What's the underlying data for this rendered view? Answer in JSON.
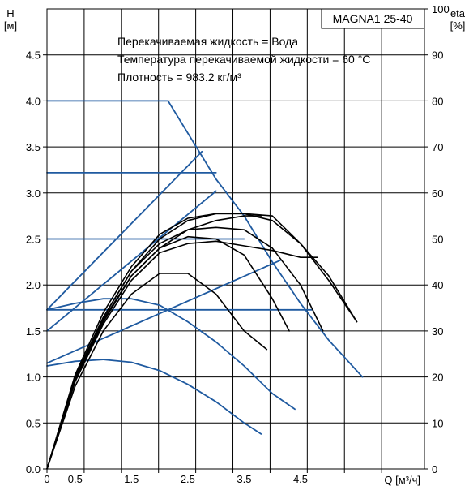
{
  "chart_data": {
    "type": "line",
    "title": "MAGNA1 25-40",
    "annotations": [
      "Перекачиваемая жидкость = Вода",
      "Температура перекачиваемой жидкости = 60 °C",
      "Плотность = 983.2 кг/м³"
    ],
    "left_axis": {
      "label_line1": "H",
      "label_line2": "[м]",
      "range": [
        0,
        5.0
      ],
      "ticks": [
        "0.0",
        "0.5",
        "1.0",
        "1.5",
        "2.0",
        "2.5",
        "3.0",
        "3.5",
        "4.0",
        "4.5"
      ]
    },
    "right_axis": {
      "label_line1": "eta",
      "label_line2": "[%]",
      "range": [
        0,
        100
      ],
      "ticks": [
        "0",
        "10",
        "20",
        "30",
        "40",
        "50",
        "60",
        "70",
        "80",
        "90",
        "100"
      ]
    },
    "x_axis": {
      "label": "Q [м³/ч]",
      "range": [
        0,
        6.7
      ],
      "tick_labels": [
        "0",
        "0.5",
        "1.5",
        "2.5",
        "3.5",
        "4.5"
      ],
      "gridlines": [
        0.66,
        1.32,
        1.98,
        2.64,
        3.3,
        3.96,
        4.62,
        5.28,
        5.94
      ]
    },
    "grid": true,
    "series": [
      {
        "group": "pump-curve",
        "color": "#1f5aa0",
        "axis": "H",
        "x": [
          0,
          2.15,
          2.6,
          3.0,
          3.5,
          4.0,
          4.5,
          5.0,
          5.6
        ],
        "y": [
          4.0,
          4.0,
          3.55,
          3.15,
          2.75,
          2.25,
          1.8,
          1.4,
          1.0
        ]
      },
      {
        "group": "const-head",
        "color": "#1f5aa0",
        "axis": "H",
        "x": [
          0,
          3.0
        ],
        "y": [
          3.22,
          3.22
        ]
      },
      {
        "group": "const-head",
        "color": "#1f5aa0",
        "axis": "H",
        "x": [
          0,
          3.5
        ],
        "y": [
          2.5,
          2.5
        ]
      },
      {
        "group": "const-head",
        "color": "#1f5aa0",
        "axis": "H",
        "x": [
          0,
          4.7
        ],
        "y": [
          1.73,
          1.73
        ]
      },
      {
        "group": "prop-pressure",
        "color": "#1f5aa0",
        "axis": "H",
        "x": [
          0,
          2.75
        ],
        "y": [
          1.73,
          3.45
        ]
      },
      {
        "group": "prop-pressure",
        "color": "#1f5aa0",
        "axis": "H",
        "x": [
          0,
          3.0
        ],
        "y": [
          1.5,
          3.02
        ]
      },
      {
        "group": "prop-pressure",
        "color": "#1f5aa0",
        "axis": "H",
        "x": [
          0,
          4.15
        ],
        "y": [
          1.15,
          2.27
        ]
      },
      {
        "group": "system-head",
        "color": "#1f5aa0",
        "axis": "H",
        "x": [
          0,
          0.5,
          1.0,
          1.5,
          2.0,
          2.5,
          3.0,
          3.5,
          4.0,
          4.4
        ],
        "y": [
          1.73,
          1.8,
          1.85,
          1.85,
          1.78,
          1.6,
          1.38,
          1.12,
          0.82,
          0.65
        ]
      },
      {
        "group": "system-head",
        "color": "#1f5aa0",
        "axis": "H",
        "x": [
          0,
          0.5,
          1.0,
          1.5,
          2.0,
          2.5,
          3.0,
          3.5,
          3.8
        ],
        "y": [
          1.12,
          1.17,
          1.19,
          1.16,
          1.07,
          0.92,
          0.73,
          0.5,
          0.38
        ]
      },
      {
        "group": "efficiency",
        "color": "#000000",
        "axis": "eta",
        "x": [
          0,
          0.5,
          1.0,
          1.5,
          2.0,
          2.5,
          3.0,
          3.5,
          4.0,
          4.5,
          5.0,
          5.5
        ],
        "y": [
          0,
          20,
          33,
          43,
          50,
          54,
          55.5,
          55.5,
          54,
          49,
          41,
          32
        ]
      },
      {
        "group": "efficiency",
        "color": "#000000",
        "axis": "eta",
        "x": [
          0,
          0.5,
          1.0,
          1.5,
          2.0,
          2.5,
          3.0,
          3.5,
          4.0,
          4.5,
          4.9
        ],
        "y": [
          0,
          20,
          33,
          43,
          49,
          52,
          52.5,
          52,
          48,
          40,
          30
        ]
      },
      {
        "group": "efficiency",
        "color": "#000000",
        "axis": "eta",
        "x": [
          0,
          0.5,
          1.0,
          1.5,
          2.0,
          2.5,
          3.0,
          3.5,
          4.0,
          4.3
        ],
        "y": [
          0,
          20,
          32.5,
          42,
          48,
          50.5,
          50,
          46.5,
          37,
          30
        ]
      },
      {
        "group": "efficiency",
        "color": "#000000",
        "axis": "eta",
        "x": [
          0,
          0.5,
          1.0,
          1.5,
          2.0,
          2.5,
          3.0,
          3.5,
          3.9
        ],
        "y": [
          0,
          18,
          30,
          38,
          42.5,
          42.5,
          38,
          30,
          26
        ]
      },
      {
        "group": "efficiency",
        "color": "#000000",
        "axis": "eta",
        "x": [
          0,
          0.5,
          1.0,
          1.5,
          2.0,
          2.5,
          3.0,
          3.5,
          4.0,
          4.5,
          4.8
        ],
        "y": [
          0,
          19,
          31.5,
          41,
          47,
          49,
          49.5,
          48.5,
          47.5,
          46,
          46
        ]
      },
      {
        "group": "efficiency",
        "color": "#000000",
        "axis": "eta",
        "x": [
          0,
          0.5,
          1.0,
          1.5,
          2.0,
          2.5,
          3.0,
          3.5,
          4.0,
          4.5,
          5.0,
          5.5
        ],
        "y": [
          0,
          20.5,
          34,
          44,
          51,
          54.5,
          55.5,
          55.5,
          55,
          49,
          42,
          32
        ]
      },
      {
        "group": "efficiency",
        "color": "#000000",
        "axis": "eta",
        "x": [
          0,
          0.5,
          1.0,
          1.5,
          2.0,
          2.5,
          3.0,
          3.5,
          3.8
        ],
        "y": [
          0,
          19.5,
          32,
          42,
          48,
          52,
          54,
          55,
          55
        ]
      }
    ]
  }
}
